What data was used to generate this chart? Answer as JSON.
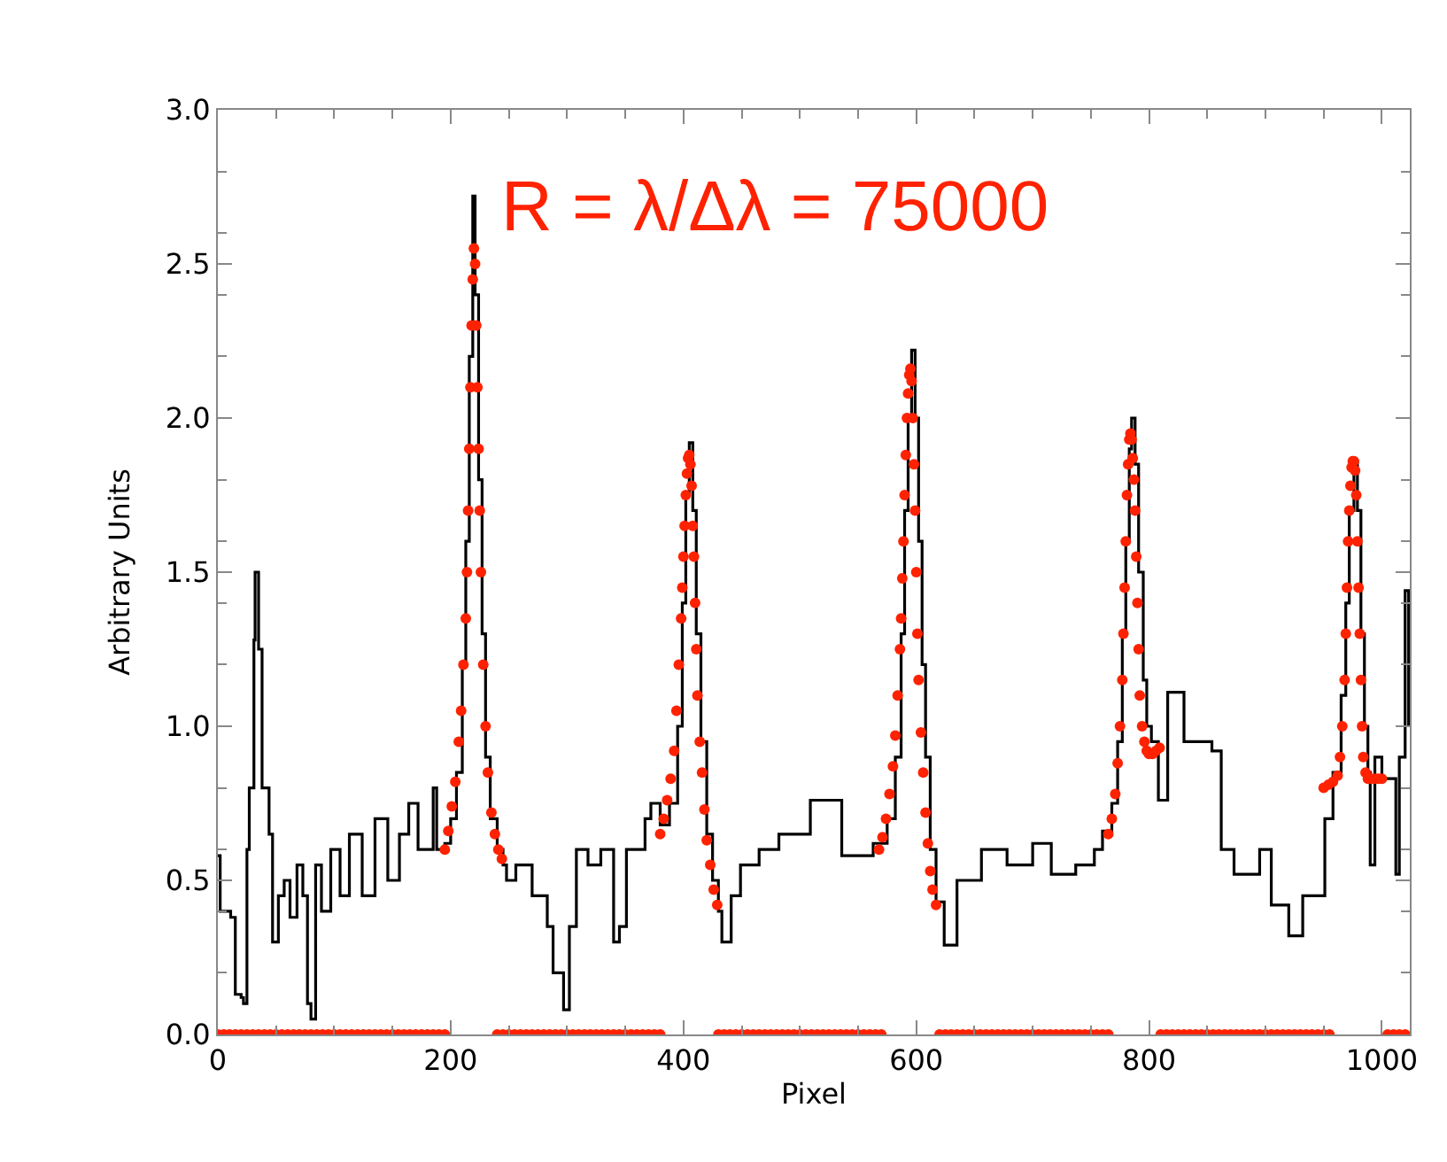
{
  "chart_data": {
    "type": "step",
    "xlabel": "Pixel",
    "ylabel": "Arbitrary Units",
    "xlim": [
      0,
      1024
    ],
    "ylim": [
      0,
      3
    ],
    "xticks": [
      0,
      200,
      400,
      600,
      800,
      1000
    ],
    "yticks": [
      {
        "value": 0,
        "label": "0.0"
      },
      {
        "value": 0.5,
        "label": "0.5"
      },
      {
        "value": 1,
        "label": "1.0"
      },
      {
        "value": 1.5,
        "label": "1.5"
      },
      {
        "value": 2,
        "label": "2.0"
      },
      {
        "value": 2.5,
        "label": "2.5"
      },
      {
        "value": 3,
        "label": "3.0"
      }
    ],
    "annotations": [
      "R = λ/Δλ = 75000"
    ],
    "series": [
      {
        "color": "#000000",
        "marker": "none",
        "x": [
          0,
          2,
          6,
          11,
          15,
          20,
          22,
          25,
          27,
          31,
          32,
          35,
          38,
          44,
          47,
          52,
          57,
          62,
          68,
          73,
          77,
          80,
          84,
          89,
          97,
          105,
          113,
          124,
          135,
          146,
          156,
          164,
          172,
          185,
          188,
          195,
          200,
          205,
          210,
          213,
          216,
          219,
          221,
          224,
          227,
          230,
          234,
          240,
          245,
          248,
          256,
          270,
          283,
          288,
          297,
          302,
          308,
          318,
          329,
          340,
          345,
          351,
          367,
          372,
          380,
          388,
          395,
          399,
          402,
          405,
          408,
          411,
          415,
          420,
          425,
          430,
          433,
          441,
          449,
          465,
          482,
          509,
          536,
          563,
          568,
          575,
          582,
          587,
          590,
          593,
          596,
          599,
          602,
          605,
          608,
          612,
          617,
          624,
          635,
          656,
          678,
          700,
          716,
          737,
          753,
          760,
          768,
          773,
          777,
          780,
          783,
          785,
          788,
          791,
          795,
          798,
          802,
          808,
          816,
          830,
          854,
          862,
          873,
          895,
          905,
          920,
          932,
          951,
          958,
          965,
          969,
          972,
          976,
          979,
          982,
          985,
          988,
          990,
          994,
          1000,
          1012,
          1015,
          1020,
          1023
        ],
        "values": [
          0.58,
          0.4,
          0.4,
          0.38,
          0.13,
          0.12,
          0.1,
          0.6,
          0.8,
          1.28,
          1.5,
          1.25,
          0.8,
          0.65,
          0.3,
          0.45,
          0.5,
          0.38,
          0.55,
          0.45,
          0.1,
          0.05,
          0.55,
          0.4,
          0.6,
          0.45,
          0.65,
          0.45,
          0.7,
          0.5,
          0.65,
          0.75,
          0.6,
          0.8,
          0.6,
          0.62,
          0.7,
          0.85,
          1.2,
          1.6,
          2.2,
          2.72,
          2.4,
          1.8,
          1.3,
          0.9,
          0.7,
          0.6,
          0.55,
          0.5,
          0.55,
          0.45,
          0.35,
          0.2,
          0.08,
          0.35,
          0.6,
          0.55,
          0.6,
          0.3,
          0.35,
          0.6,
          0.7,
          0.75,
          0.68,
          0.75,
          1.0,
          1.4,
          1.75,
          1.92,
          1.7,
          1.3,
          0.95,
          0.65,
          0.5,
          0.4,
          0.3,
          0.45,
          0.55,
          0.6,
          0.65,
          0.76,
          0.58,
          0.62,
          0.62,
          0.7,
          0.9,
          1.3,
          1.7,
          2.0,
          2.22,
          2.0,
          1.6,
          1.2,
          0.9,
          0.6,
          0.43,
          0.29,
          0.5,
          0.6,
          0.55,
          0.62,
          0.52,
          0.55,
          0.6,
          0.66,
          0.75,
          0.95,
          1.3,
          1.6,
          1.9,
          2.0,
          1.85,
          1.5,
          1.15,
          1.0,
          0.95,
          0.76,
          1.11,
          0.95,
          0.92,
          0.6,
          0.52,
          0.6,
          0.42,
          0.32,
          0.45,
          0.7,
          0.85,
          1.1,
          1.4,
          1.7,
          1.86,
          1.7,
          1.3,
          1.0,
          0.85,
          0.55,
          0.9,
          0.83,
          0.52,
          0.9,
          1.44,
          1.0
        ]
      },
      {
        "type": "scatter",
        "color": "#ff2200",
        "marker": "circle",
        "x": [
          0,
          5,
          10,
          15,
          20,
          25,
          30,
          35,
          40,
          45,
          50,
          55,
          60,
          65,
          70,
          75,
          80,
          85,
          90,
          95,
          100,
          105,
          110,
          115,
          120,
          125,
          130,
          135,
          140,
          145,
          150,
          155,
          160,
          165,
          170,
          175,
          180,
          185,
          190,
          195,
          195,
          198,
          201,
          204,
          207,
          209,
          211,
          213,
          214,
          215,
          216,
          217,
          218,
          219,
          220,
          221,
          222,
          223,
          224,
          225,
          226,
          228,
          230,
          232,
          235,
          238,
          241,
          244,
          240,
          245,
          250,
          255,
          260,
          265,
          270,
          275,
          280,
          285,
          290,
          295,
          300,
          305,
          310,
          315,
          320,
          325,
          330,
          335,
          340,
          345,
          350,
          355,
          360,
          365,
          370,
          375,
          380,
          380,
          383,
          386,
          389,
          392,
          394,
          396,
          398,
          399,
          400,
          401,
          402,
          403,
          404,
          405,
          406,
          407,
          408,
          409,
          410,
          411,
          412,
          414,
          416,
          418,
          420,
          423,
          426,
          429,
          430,
          435,
          440,
          445,
          450,
          455,
          460,
          465,
          470,
          475,
          480,
          485,
          490,
          495,
          500,
          505,
          510,
          515,
          520,
          525,
          530,
          535,
          540,
          545,
          550,
          555,
          560,
          565,
          570,
          568,
          571,
          574,
          577,
          580,
          582,
          584,
          586,
          587,
          588,
          589,
          590,
          591,
          592,
          593,
          594,
          595,
          596,
          597,
          598,
          599,
          600,
          601,
          602,
          604,
          606,
          608,
          610,
          612,
          614,
          617,
          620,
          625,
          630,
          635,
          640,
          645,
          650,
          655,
          660,
          665,
          670,
          675,
          680,
          685,
          690,
          695,
          700,
          705,
          710,
          715,
          720,
          725,
          730,
          735,
          740,
          745,
          750,
          755,
          760,
          765,
          765,
          768,
          771,
          773,
          775,
          777,
          778,
          779,
          780,
          781,
          782,
          783,
          784,
          785,
          786,
          787,
          788,
          789,
          790,
          791,
          792,
          794,
          796,
          798,
          800,
          803,
          806,
          809,
          810,
          815,
          820,
          825,
          830,
          835,
          840,
          845,
          850,
          855,
          860,
          865,
          870,
          875,
          880,
          885,
          890,
          895,
          900,
          905,
          910,
          915,
          920,
          925,
          930,
          935,
          940,
          945,
          950,
          955,
          950,
          954,
          958,
          962,
          964,
          966,
          968,
          969,
          970,
          971,
          972,
          973,
          974,
          975,
          976,
          977,
          978,
          979,
          980,
          981,
          982,
          983,
          984,
          986,
          988,
          991,
          994,
          997,
          1000,
          1005,
          1010,
          1015,
          1020
        ],
        "values": [
          0,
          0,
          0,
          0,
          0,
          0,
          0,
          0,
          0,
          0,
          0,
          0,
          0,
          0,
          0,
          0,
          0,
          0,
          0,
          0,
          0,
          0,
          0,
          0,
          0,
          0,
          0,
          0,
          0,
          0,
          0,
          0,
          0,
          0,
          0,
          0,
          0,
          0,
          0,
          0,
          0.6,
          0.66,
          0.74,
          0.82,
          0.95,
          1.05,
          1.2,
          1.35,
          1.5,
          1.7,
          1.9,
          2.1,
          2.3,
          2.45,
          2.55,
          2.5,
          2.3,
          2.1,
          1.9,
          1.7,
          1.5,
          1.2,
          1.0,
          0.85,
          0.72,
          0.65,
          0.6,
          0.57,
          0,
          0,
          0,
          0,
          0,
          0,
          0,
          0,
          0,
          0,
          0,
          0,
          0,
          0,
          0,
          0,
          0,
          0,
          0,
          0,
          0,
          0,
          0,
          0,
          0,
          0,
          0,
          0,
          0,
          0.65,
          0.7,
          0.76,
          0.83,
          0.92,
          1.05,
          1.2,
          1.35,
          1.45,
          1.55,
          1.65,
          1.75,
          1.82,
          1.87,
          1.88,
          1.85,
          1.78,
          1.65,
          1.55,
          1.4,
          1.25,
          1.1,
          0.95,
          0.85,
          0.73,
          0.63,
          0.55,
          0.47,
          0.42,
          0,
          0,
          0,
          0,
          0,
          0,
          0,
          0,
          0,
          0,
          0,
          0,
          0,
          0,
          0,
          0,
          0,
          0,
          0,
          0,
          0,
          0,
          0,
          0,
          0,
          0,
          0,
          0,
          0,
          0.6,
          0.64,
          0.7,
          0.78,
          0.87,
          0.97,
          1.1,
          1.25,
          1.35,
          1.48,
          1.6,
          1.75,
          1.88,
          2.0,
          2.08,
          2.14,
          2.16,
          2.12,
          2.0,
          1.85,
          1.7,
          1.5,
          1.3,
          1.15,
          0.98,
          0.85,
          0.72,
          0.62,
          0.53,
          0.47,
          0.42,
          0,
          0,
          0,
          0,
          0,
          0,
          0,
          0,
          0,
          0,
          0,
          0,
          0,
          0,
          0,
          0,
          0,
          0,
          0,
          0,
          0,
          0,
          0,
          0,
          0,
          0,
          0,
          0,
          0,
          0,
          0.65,
          0.7,
          0.78,
          0.88,
          1.0,
          1.15,
          1.3,
          1.45,
          1.6,
          1.75,
          1.85,
          1.93,
          1.95,
          1.93,
          1.87,
          1.8,
          1.7,
          1.55,
          1.4,
          1.25,
          1.1,
          1.0,
          0.95,
          0.92,
          0.91,
          0.91,
          0.92,
          0.93,
          0,
          0,
          0,
          0,
          0,
          0,
          0,
          0,
          0,
          0,
          0,
          0,
          0,
          0,
          0,
          0,
          0,
          0,
          0,
          0,
          0,
          0,
          0,
          0,
          0,
          0,
          0,
          0,
          0,
          0,
          0.8,
          0.81,
          0.82,
          0.84,
          0.9,
          1.0,
          1.15,
          1.3,
          1.45,
          1.6,
          1.7,
          1.78,
          1.84,
          1.86,
          1.86,
          1.83,
          1.75,
          1.6,
          1.45,
          1.3,
          1.15,
          1.0,
          0.9,
          0.85,
          0.83,
          0.83,
          0.83,
          0.83,
          0.83,
          0,
          0,
          0,
          0
        ]
      }
    ]
  }
}
